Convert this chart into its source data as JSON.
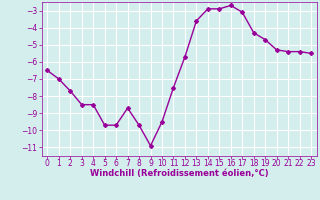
{
  "x": [
    0,
    1,
    2,
    3,
    4,
    5,
    6,
    7,
    8,
    9,
    10,
    11,
    12,
    13,
    14,
    15,
    16,
    17,
    18,
    19,
    20,
    21,
    22,
    23
  ],
  "y": [
    -6.5,
    -7.0,
    -7.7,
    -8.5,
    -8.5,
    -9.7,
    -9.7,
    -8.7,
    -9.7,
    -10.9,
    -9.5,
    -7.5,
    -5.7,
    -3.6,
    -2.9,
    -2.9,
    -2.7,
    -3.1,
    -4.3,
    -4.7,
    -5.3,
    -5.4,
    -5.4,
    -5.5
  ],
  "line_color": "#990099",
  "marker": "D",
  "marker_size": 2.0,
  "bg_color": "#d4eeed",
  "grid_color": "#ffffff",
  "tick_color": "#990099",
  "label_color": "#990099",
  "xlabel": "Windchill (Refroidissement éolien,°C)",
  "xlabel_fontsize": 6.0,
  "tick_fontsize": 5.5,
  "ylim": [
    -11.5,
    -2.5
  ],
  "xlim": [
    -0.5,
    23.5
  ],
  "yticks": [
    -11,
    -10,
    -9,
    -8,
    -7,
    -6,
    -5,
    -4,
    -3
  ],
  "xticks": [
    0,
    1,
    2,
    3,
    4,
    5,
    6,
    7,
    8,
    9,
    10,
    11,
    12,
    13,
    14,
    15,
    16,
    17,
    18,
    19,
    20,
    21,
    22,
    23
  ],
  "linewidth": 1.0
}
